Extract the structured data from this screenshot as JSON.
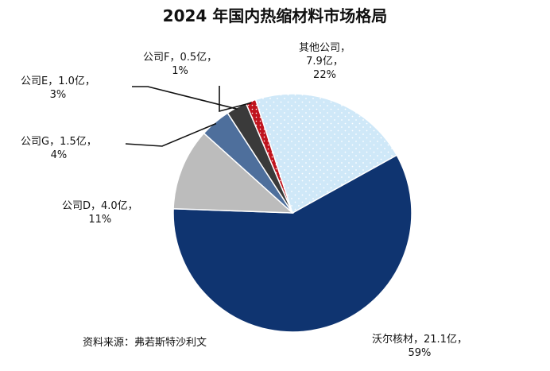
{
  "chart_data": {
    "type": "pie",
    "title": "2024 年国内热缩材料市场格局",
    "source": "资料来源：弗若斯特沙利文",
    "colors": {
      "沃尔核材": "#0f3470",
      "公司D": "#bcbcbc",
      "公司G": "#4e6f9c",
      "公司E": "#3a3a3a",
      "公司F": "#c0141e",
      "其他公司": "#cfe8f8"
    },
    "slices": [
      {
        "name": "沃尔核材",
        "value": 21.1,
        "percent": "59%",
        "label": "沃尔核材，21.1亿，",
        "pct_label": "59%"
      },
      {
        "name": "公司D",
        "value": 4.0,
        "percent": "11%",
        "label": "公司D，4.0亿，",
        "pct_label": "11%"
      },
      {
        "name": "公司G",
        "value": 1.5,
        "percent": "4%",
        "label": "公司G，1.5亿，",
        "pct_label": "4%"
      },
      {
        "name": "公司E",
        "value": 1.0,
        "percent": "3%",
        "label": "公司E，1.0亿，",
        "pct_label": "3%"
      },
      {
        "name": "公司F",
        "value": 0.5,
        "percent": "1%",
        "label": "公司F，0.5亿，",
        "pct_label": "1%"
      },
      {
        "name": "其他公司",
        "value": 7.9,
        "percent": "22%",
        "label": "其他公司，",
        "label2": "7.9亿，",
        "pct_label": "22%"
      }
    ]
  }
}
